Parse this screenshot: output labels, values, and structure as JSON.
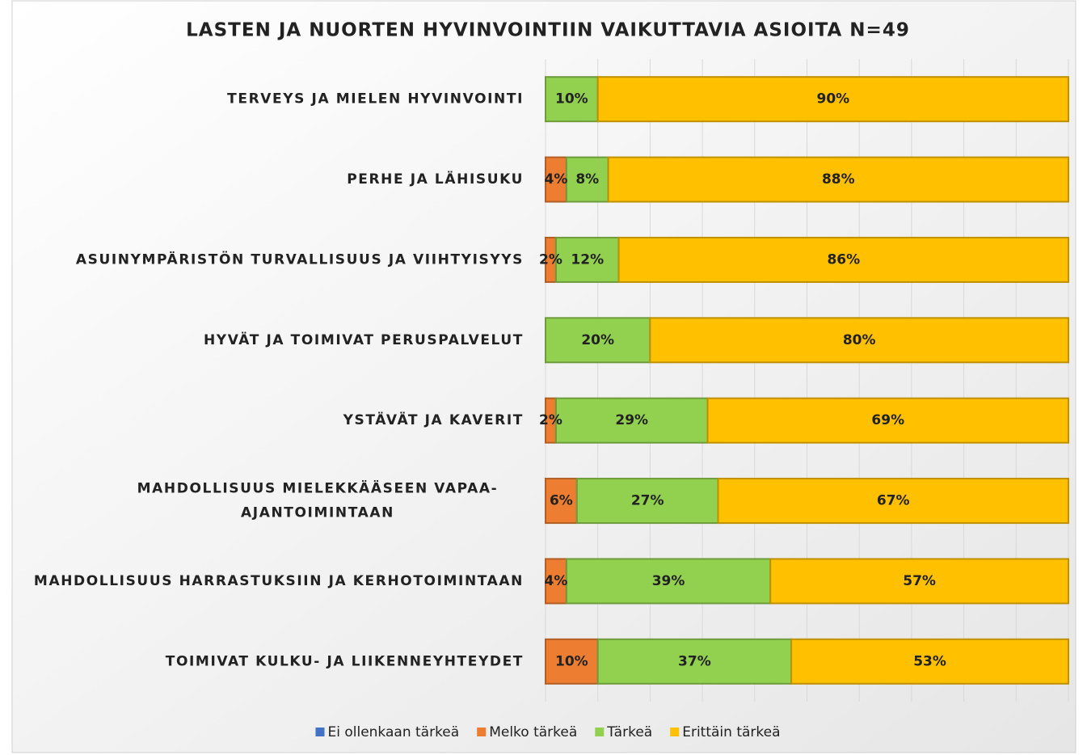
{
  "chart_data": {
    "type": "stacked-bar-horizontal",
    "title": "LASTEN JA NUORTEN HYVINVOINTIIN VAIKUTTAVIA ASIOITA N=49",
    "categories": [
      "TERVEYS JA MIELEN HYVINVOINTI",
      "PERHE JA LÄHISUKU",
      "ASUINYMPÄRISTÖN TURVALLISUUS JA VIIHTYISYYS",
      "HYVÄT JA TOIMIVAT PERUSPALVELUT",
      "YSTÄVÄT JA KAVERIT",
      "MAHDOLLISUUS MIELEKKÄÄSEEN VAPAA-AJANTOIMINTAAN",
      "MAHDOLLISUUS HARRASTUKSIIN JA KERHOTOIMINTAAN",
      "TOIMIVAT KULKU- JA LIIKENNEYHTEYDET"
    ],
    "series": [
      {
        "name": "Ei ollenkaan tärkeä",
        "color": "#4472C4",
        "values": [
          0,
          0,
          0,
          0,
          0,
          0,
          0,
          0
        ],
        "value_labels": [
          null,
          null,
          null,
          null,
          null,
          null,
          null,
          null
        ]
      },
      {
        "name": "Melko tärkeä",
        "color": "#ED7D31",
        "values": [
          0,
          4,
          2,
          0,
          2,
          6,
          4,
          10
        ],
        "value_labels": [
          null,
          "4%",
          "2%",
          null,
          "2%",
          "6%",
          "4%",
          "10%"
        ]
      },
      {
        "name": "Tärkeä",
        "color": "#92D050",
        "values": [
          10,
          8,
          12,
          20,
          29,
          27,
          39,
          37
        ],
        "value_labels": [
          "10%",
          "8%",
          "12%",
          "20%",
          "29%",
          "27%",
          "39%",
          "37%"
        ]
      },
      {
        "name": "Erittäin tärkeä",
        "color": "#FFC000",
        "values": [
          90,
          88,
          86,
          80,
          69,
          67,
          57,
          53
        ],
        "value_labels": [
          "90%",
          "88%",
          "86%",
          "80%",
          "69%",
          "67%",
          "57%",
          "53%"
        ]
      }
    ],
    "xlim": [
      0,
      100
    ],
    "xticks": [
      0,
      10,
      20,
      30,
      40,
      50,
      60,
      70,
      80,
      90,
      100
    ],
    "grid": true,
    "legend": "bottom"
  }
}
